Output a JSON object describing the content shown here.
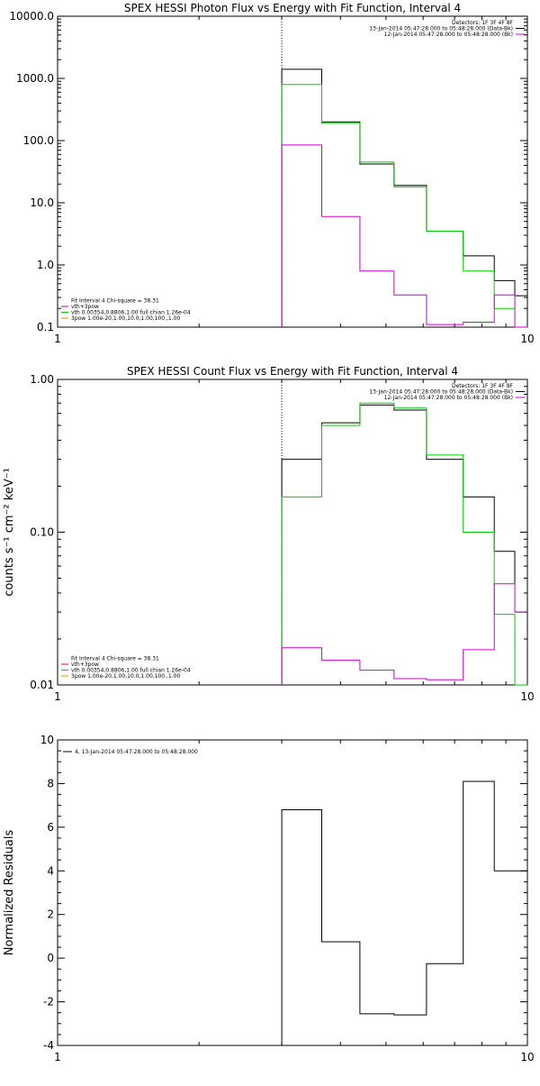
{
  "chart_data": [
    {
      "type": "line",
      "title": "SPEX HESSI Photon Flux vs Energy with Fit Function, Interval 4",
      "ylabel": "",
      "xlabel": "",
      "xscale": "log",
      "yscale": "log",
      "xlim": [
        1,
        10
      ],
      "ylim": [
        0.1,
        10000
      ],
      "x_ticks": [
        {
          "v": 1,
          "label": "1"
        },
        {
          "v": 10,
          "label": "10"
        }
      ],
      "y_ticks": [
        {
          "v": 10000,
          "label": "10000.0"
        },
        {
          "v": 1000,
          "label": "1000.0"
        },
        {
          "v": 100,
          "label": "100.0"
        },
        {
          "v": 10,
          "label": "10.0"
        },
        {
          "v": 1,
          "label": "1.0"
        },
        {
          "v": 0.1,
          "label": "0.1"
        }
      ],
      "marker_x": 3.0,
      "legend_top_right": [
        {
          "text": "Detectors: 1F 3F 4F 8F",
          "color": ""
        },
        {
          "text": "13-Jan-2014 05:47:28.000 to 05:48:28.000 (Data-Bk)",
          "color": "#000000"
        },
        {
          "text": "12-Jan-2014 05:47:28.000 to 05:48:28.000 (Bk)",
          "color": "#cc00cc"
        }
      ],
      "legend_bottom_left": [
        {
          "text": "Fit Interval 4   Chi-square = 38.31",
          "color": ""
        },
        {
          "text": "vth+3pow",
          "color": "#cc0066"
        },
        {
          "text": "vth 0.00354,0.8806,1.00   full chian 1.26e-04",
          "color": "#00cc00"
        },
        {
          "text": "3pow 1.00e-20,1.00,10.0,1.00,100.,1.00",
          "color": "#cc9900"
        }
      ],
      "bin_edges": [
        3.0,
        3.65,
        4.4,
        5.2,
        6.1,
        7.3,
        8.5,
        9.4,
        10.0
      ],
      "series": [
        {
          "name": "Data-Bk",
          "color": "#000000",
          "values": [
            1400,
            200,
            42,
            19,
            3.5,
            1.4,
            0.56,
            0.32
          ]
        },
        {
          "name": "Fit",
          "color": "#00cc00",
          "values": [
            800,
            190,
            45,
            18,
            3.5,
            0.8,
            0.2,
            0.1
          ]
        },
        {
          "name": "Bk",
          "color": "#cc00cc",
          "values": [
            85,
            6,
            0.8,
            0.33,
            0.11,
            0.12,
            0.33,
            0.1
          ]
        }
      ]
    },
    {
      "type": "line",
      "title": "SPEX HESSI Count Flux vs Energy with Fit Function, Interval 4",
      "ylabel": "counts s⁻¹ cm⁻² keV⁻¹",
      "xlabel": "",
      "xscale": "log",
      "yscale": "log",
      "xlim": [
        1,
        10
      ],
      "ylim": [
        0.01,
        1.0
      ],
      "x_ticks": [
        {
          "v": 1,
          "label": "1"
        },
        {
          "v": 10,
          "label": "10"
        }
      ],
      "y_ticks": [
        {
          "v": 1.0,
          "label": "1.00"
        },
        {
          "v": 0.1,
          "label": "0.10"
        },
        {
          "v": 0.01,
          "label": "0.01"
        }
      ],
      "marker_x": 3.0,
      "legend_top_right": [
        {
          "text": "Detectors: 1F 3F 4F 8F",
          "color": ""
        },
        {
          "text": "13-Jan-2014 05:47:28.000 to 05:48:28.000 (Data-Bk)",
          "color": "#000000"
        },
        {
          "text": "12-Jan-2014 05:47:28.000 to 05:48:28.000 (Bk)",
          "color": "#cc00cc"
        }
      ],
      "legend_bottom_left": [
        {
          "text": "Fit Interval 4   Chi-square = 38.31",
          "color": ""
        },
        {
          "text": "vth+3pow",
          "color": "#cc0066"
        },
        {
          "text": "vth 0.00354,0.8806,1.00   full chian 1.26e-04",
          "color": "#00cc00"
        },
        {
          "text": "3pow 1.00e-20,1.00,10.0,1.00,100.,1.00",
          "color": "#cc9900"
        }
      ],
      "bin_edges": [
        3.0,
        3.65,
        4.4,
        5.2,
        6.1,
        7.3,
        8.5,
        9.4,
        10.0
      ],
      "series": [
        {
          "name": "Data-Bk",
          "color": "#000000",
          "values": [
            0.3,
            0.52,
            0.68,
            0.63,
            0.3,
            0.17,
            0.075,
            0.03
          ]
        },
        {
          "name": "Fit",
          "color": "#00cc00",
          "values": [
            0.17,
            0.5,
            0.7,
            0.65,
            0.32,
            0.1,
            0.029,
            0.01
          ]
        },
        {
          "name": "Bk",
          "color": "#cc00cc",
          "values": [
            0.0175,
            0.0145,
            0.0125,
            0.011,
            0.0108,
            0.017,
            0.046,
            0.03
          ]
        }
      ]
    },
    {
      "type": "line",
      "title": "",
      "ylabel": "Normalized Residuals",
      "xlabel": "",
      "xscale": "log",
      "yscale": "linear",
      "xlim": [
        1,
        10
      ],
      "ylim": [
        -4,
        10
      ],
      "x_ticks": [
        {
          "v": 1,
          "label": "1"
        },
        {
          "v": 10,
          "label": "10"
        }
      ],
      "y_ticks": [
        {
          "v": 10,
          "label": "10"
        },
        {
          "v": 8,
          "label": "8"
        },
        {
          "v": 6,
          "label": "6"
        },
        {
          "v": 4,
          "label": "4"
        },
        {
          "v": 2,
          "label": "2"
        },
        {
          "v": 0,
          "label": "0"
        },
        {
          "v": -2,
          "label": "-2"
        },
        {
          "v": -4,
          "label": "-4"
        }
      ],
      "legend_top_left": [
        {
          "text": "4, 13-Jan-2014 05:47:28.000 to 05:48:28.000",
          "color": "#000000"
        }
      ],
      "bin_edges": [
        3.0,
        3.65,
        4.4,
        5.2,
        6.1,
        7.3,
        8.5,
        9.4,
        10.0
      ],
      "series": [
        {
          "name": "Residuals",
          "color": "#000000",
          "values": [
            6.8,
            0.75,
            -2.55,
            -2.6,
            -0.25,
            8.1,
            4.0,
            4.0
          ]
        }
      ]
    }
  ]
}
